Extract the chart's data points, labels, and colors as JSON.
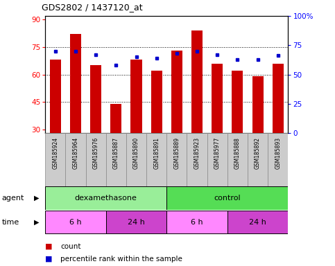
{
  "title": "GDS2802 / 1437120_at",
  "samples": [
    "GSM185924",
    "GSM185964",
    "GSM185976",
    "GSM185887",
    "GSM185890",
    "GSM185891",
    "GSM185889",
    "GSM185923",
    "GSM185977",
    "GSM185888",
    "GSM185892",
    "GSM185893"
  ],
  "counts": [
    68,
    82,
    65,
    44,
    68,
    62,
    73,
    84,
    66,
    62,
    59,
    66
  ],
  "percentile_ranks": [
    70,
    70,
    67,
    58,
    65,
    64,
    68,
    70,
    67,
    63,
    63,
    66
  ],
  "ylim_left": [
    28,
    92
  ],
  "ylim_right": [
    0,
    100
  ],
  "yticks_left": [
    30,
    45,
    60,
    75,
    90
  ],
  "yticks_right": [
    0,
    25,
    50,
    75,
    100
  ],
  "yticklabels_right": [
    "0",
    "25",
    "50",
    "75",
    "100%"
  ],
  "bar_color": "#cc0000",
  "dot_color": "#0000cc",
  "bar_bottom": 28,
  "agent_groups": [
    {
      "label": "dexamethasone",
      "start": 0,
      "end": 6,
      "color": "#99ee99"
    },
    {
      "label": "control",
      "start": 6,
      "end": 12,
      "color": "#55dd55"
    }
  ],
  "time_groups": [
    {
      "label": "6 h",
      "start": 0,
      "end": 3,
      "color": "#ff88ff"
    },
    {
      "label": "24 h",
      "start": 3,
      "end": 6,
      "color": "#cc44cc"
    },
    {
      "label": "6 h",
      "start": 6,
      "end": 9,
      "color": "#ff88ff"
    },
    {
      "label": "24 h",
      "start": 9,
      "end": 12,
      "color": "#cc44cc"
    }
  ],
  "legend_count_color": "#cc0000",
  "legend_dot_color": "#0000cc",
  "background_color": "#ffffff",
  "plot_bg_color": "#ffffff",
  "label_bg_color": "#cccccc"
}
